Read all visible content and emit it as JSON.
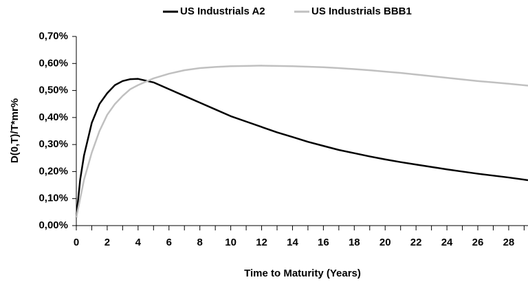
{
  "chart_data": {
    "type": "line",
    "xlabel": "Time to Maturity (Years)",
    "ylabel": "D(0,T)/T*mr%",
    "x": [
      0,
      0.25,
      0.5,
      1,
      1.5,
      2,
      2.5,
      3,
      3.5,
      4,
      5,
      6,
      7,
      8,
      9,
      10,
      11,
      12,
      13,
      14,
      15,
      16,
      17,
      18,
      19,
      20,
      21,
      22,
      23,
      24,
      25,
      26,
      27,
      28,
      29.25
    ],
    "series": [
      {
        "name": "US Industrials A2",
        "color": "#000000",
        "values": [
          0.03,
          0.17,
          0.26,
          0.38,
          0.45,
          0.49,
          0.52,
          0.535,
          0.542,
          0.543,
          0.53,
          0.505,
          0.48,
          0.455,
          0.43,
          0.405,
          0.385,
          0.365,
          0.345,
          0.328,
          0.31,
          0.295,
          0.28,
          0.268,
          0.256,
          0.245,
          0.235,
          0.226,
          0.217,
          0.208,
          0.2,
          0.192,
          0.185,
          0.178,
          0.168
        ]
      },
      {
        "name": "US Industrials BBB1",
        "color": "#c0c0c0",
        "values": [
          0.03,
          0.1,
          0.17,
          0.27,
          0.35,
          0.41,
          0.45,
          0.48,
          0.505,
          0.52,
          0.545,
          0.562,
          0.575,
          0.583,
          0.587,
          0.59,
          0.591,
          0.592,
          0.591,
          0.59,
          0.588,
          0.586,
          0.583,
          0.579,
          0.575,
          0.57,
          0.565,
          0.559,
          0.553,
          0.547,
          0.541,
          0.535,
          0.53,
          0.525,
          0.518
        ]
      }
    ],
    "xlim": [
      0,
      29.25
    ],
    "xticks": [
      0,
      2,
      4,
      6,
      8,
      10,
      12,
      14,
      16,
      18,
      20,
      22,
      24,
      26,
      28
    ],
    "xminorticks": [
      1,
      3,
      5,
      7,
      9,
      11,
      13,
      15,
      17,
      19,
      21,
      23,
      25,
      27,
      29
    ],
    "ylim": [
      0,
      0.7
    ],
    "yticks": [
      {
        "value": 0,
        "label": "0,00%"
      },
      {
        "value": 0.1,
        "label": "0,10%"
      },
      {
        "value": 0.2,
        "label": "0,20%"
      },
      {
        "value": 0.3,
        "label": "0,30%"
      },
      {
        "value": 0.4,
        "label": "0,40%"
      },
      {
        "value": 0.5,
        "label": "0,50%"
      },
      {
        "value": 0.6,
        "label": "0,60%"
      },
      {
        "value": 0.7,
        "label": "0,70%"
      }
    ],
    "grid": false,
    "legend": "top"
  }
}
